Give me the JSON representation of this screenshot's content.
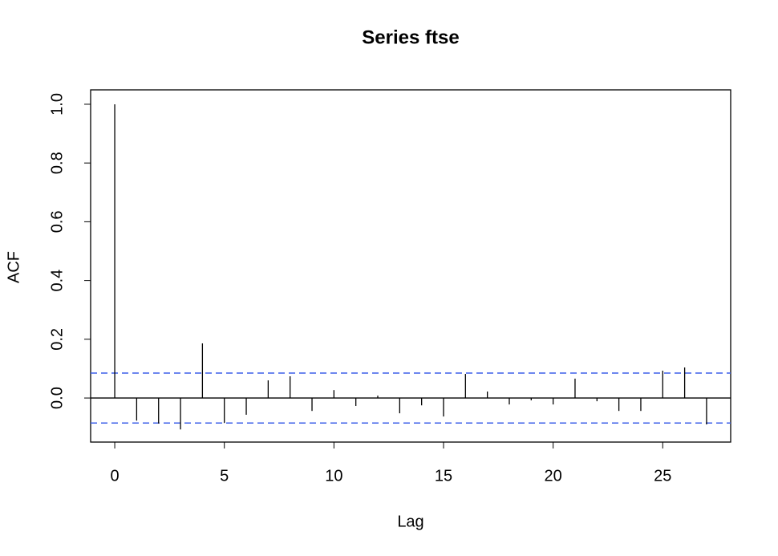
{
  "chart_data": {
    "type": "acf",
    "title": "Series  ftse",
    "x_label": "Lag",
    "y_label": "ACF",
    "x": [
      0,
      1,
      2,
      3,
      4,
      5,
      6,
      7,
      8,
      9,
      10,
      11,
      12,
      13,
      14,
      15,
      16,
      17,
      18,
      19,
      20,
      21,
      22,
      23,
      24,
      25,
      26,
      27
    ],
    "values": [
      1.0,
      -0.077,
      -0.087,
      -0.107,
      0.186,
      -0.085,
      -0.057,
      0.06,
      0.074,
      -0.044,
      0.027,
      -0.027,
      0.008,
      -0.052,
      -0.025,
      -0.063,
      0.082,
      0.022,
      -0.022,
      -0.008,
      -0.022,
      0.066,
      -0.011,
      -0.044,
      -0.044,
      0.093,
      0.104,
      -0.09
    ],
    "color": "#000000",
    "confidence_bounds": [
      0.085,
      -0.085
    ],
    "confidence_color": "#3b5ee8",
    "xlim": [
      -1.1,
      28.1
    ],
    "xticks": [
      0,
      5,
      10,
      15,
      20,
      25
    ],
    "ylim": [
      -0.15,
      1.049
    ],
    "yticks": [
      {
        "value": 0,
        "label": "0.0"
      },
      0.2,
      0.4,
      0.6,
      0.8,
      {
        "value": 1,
        "label": "1.0"
      }
    ]
  }
}
